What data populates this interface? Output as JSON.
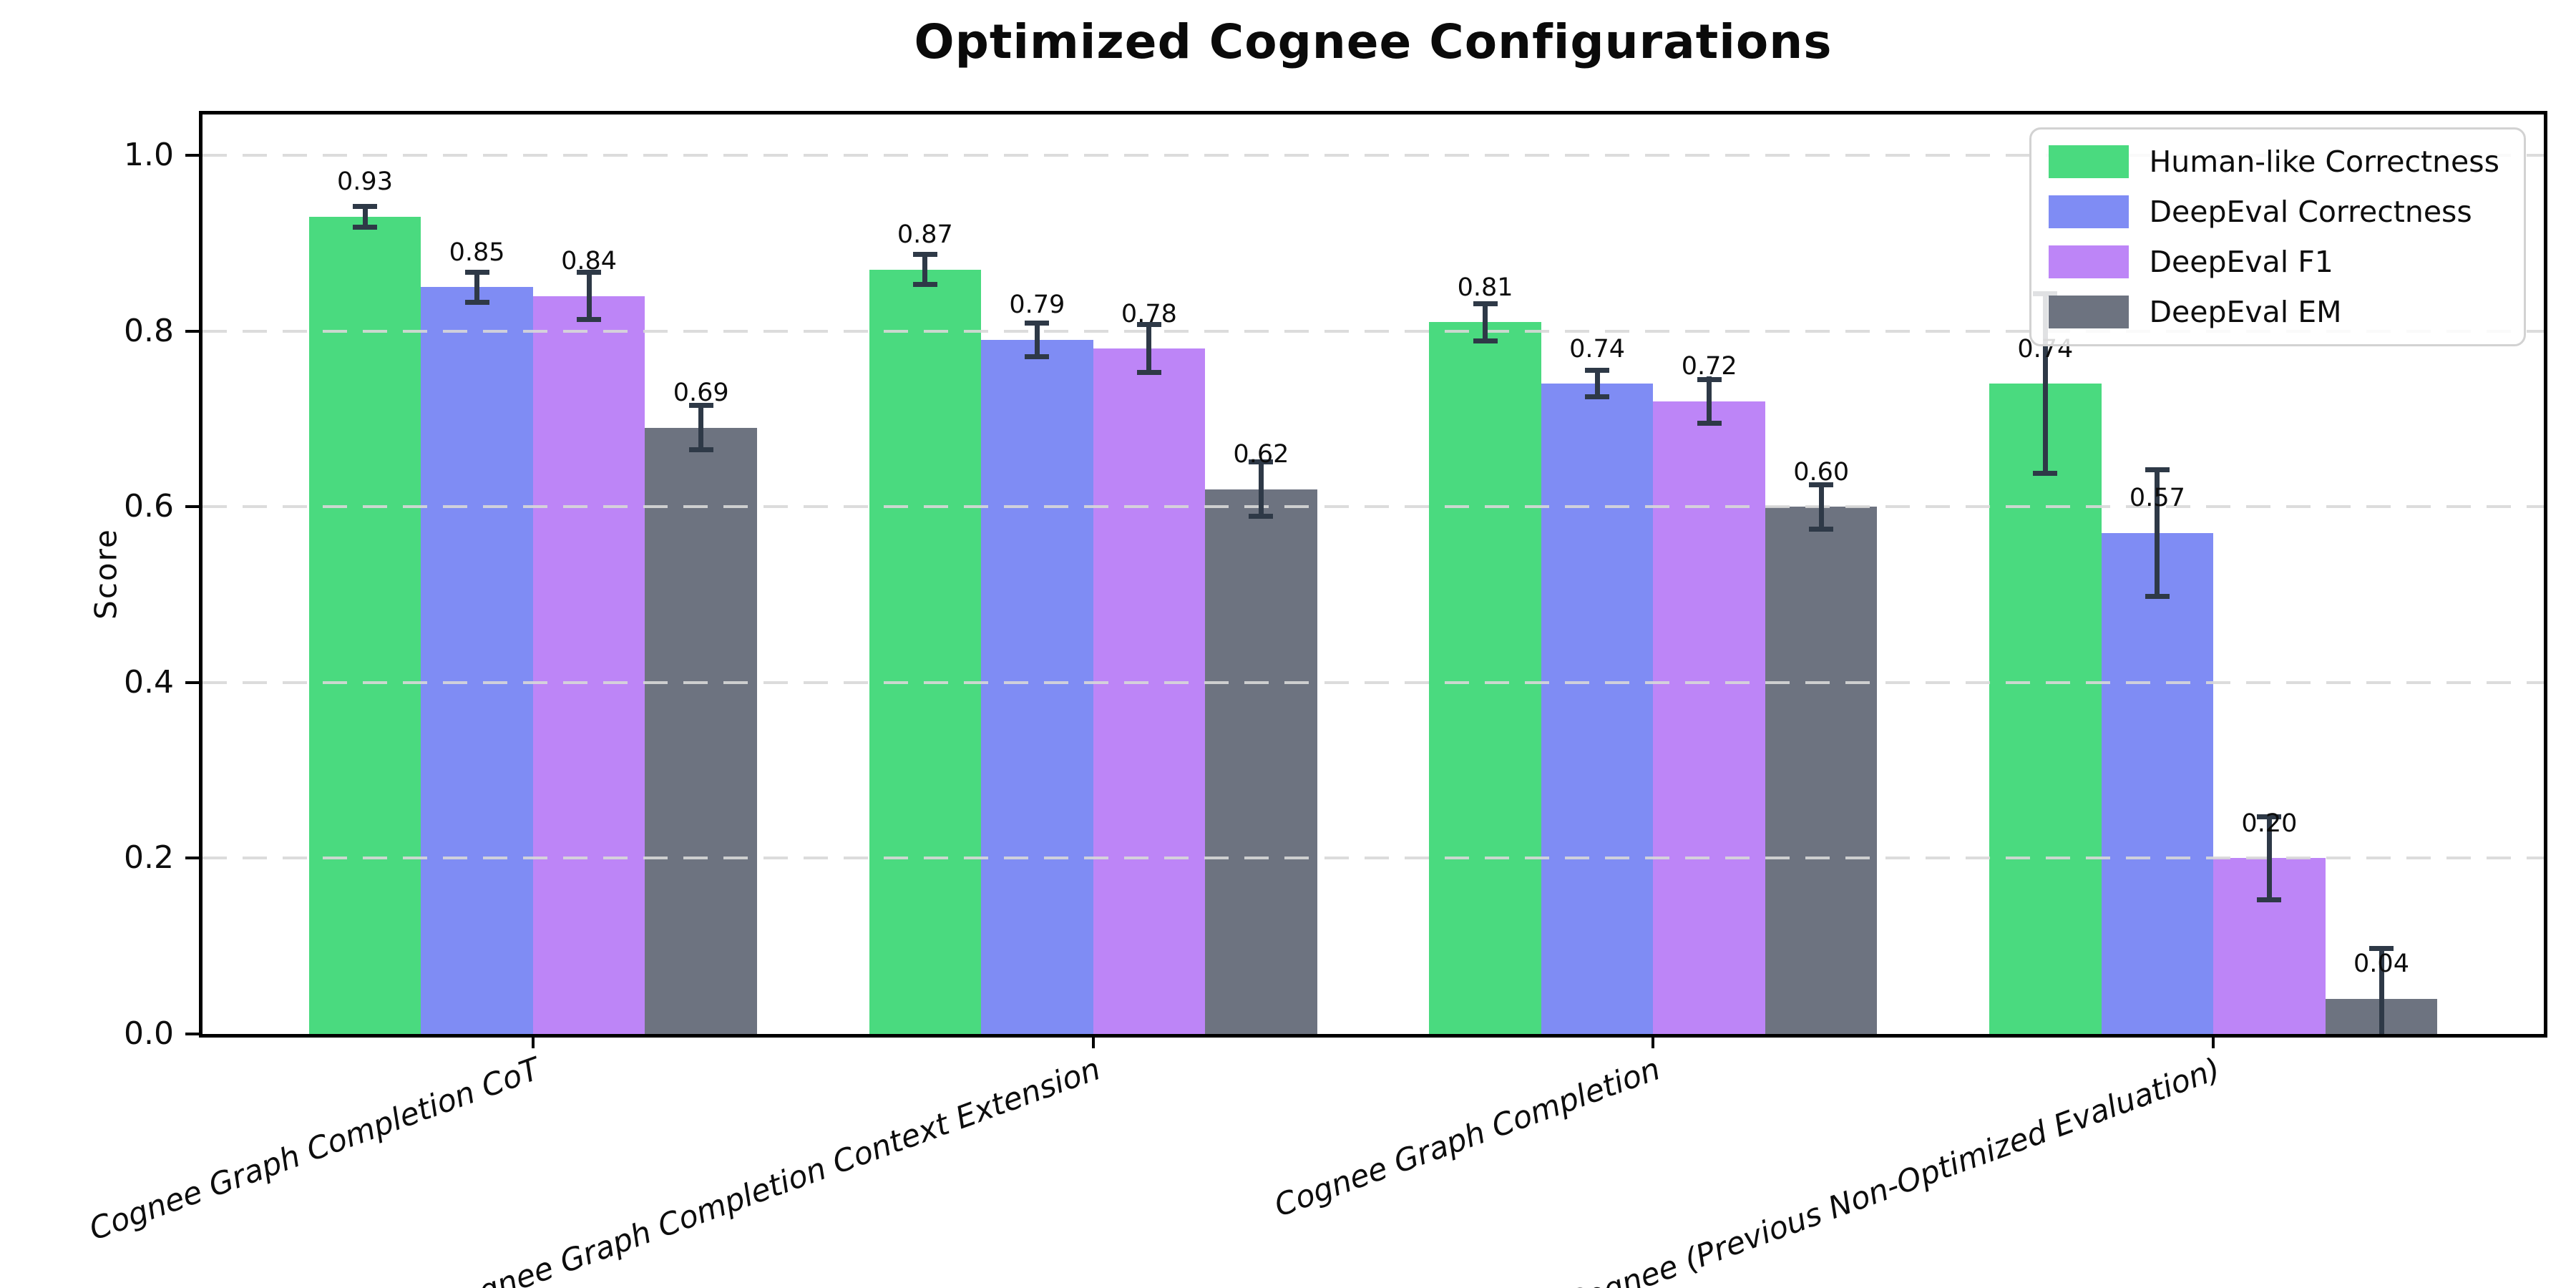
{
  "title": "Optimized Cognee Configurations",
  "chart_data": {
    "type": "bar",
    "title": "Optimized Cognee Configurations",
    "xlabel": "",
    "ylabel": "Score",
    "ylim": [
      0,
      1.05
    ],
    "yticks": [
      0.0,
      0.2,
      0.4,
      0.6,
      0.8,
      1.0
    ],
    "ytick_labels": [
      "0.0",
      "0.2",
      "0.4",
      "0.6",
      "0.8",
      "1.0"
    ],
    "grid": "horizontal dashed gridlines drawn over bars",
    "legend_position": "upper right",
    "bar_label_format": "two decimals above each bar",
    "error_bars": true,
    "error_bar_color": "#2e3947",
    "categories": [
      "Cognee Graph Completion CoT",
      "Cognee Graph Completion Context Extension",
      "Cognee Graph Completion",
      "Cognee (Previous Non-Optimized Evaluation)"
    ],
    "series": [
      {
        "name": "Human-like Correctness",
        "color": "#4ada7f",
        "values": [
          0.93,
          0.87,
          0.81,
          0.74
        ],
        "errors": [
          0.015,
          0.02,
          0.024,
          0.105
        ]
      },
      {
        "name": "DeepEval Correctness",
        "color": "#7f8cf4",
        "values": [
          0.85,
          0.79,
          0.74,
          0.57
        ],
        "errors": [
          0.02,
          0.022,
          0.018,
          0.075
        ]
      },
      {
        "name": "DeepEval F1",
        "color": "#bd85f7",
        "values": [
          0.84,
          0.78,
          0.72,
          0.2
        ],
        "errors": [
          0.03,
          0.03,
          0.028,
          0.05
        ]
      },
      {
        "name": "DeepEval EM",
        "color": "#6d7380",
        "values": [
          0.69,
          0.62,
          0.6,
          0.04
        ],
        "errors": [
          0.028,
          0.034,
          0.028,
          0.06
        ]
      }
    ]
  },
  "colors": {
    "background": "#ffffff",
    "spine": "#000000",
    "gridline": "#d8d8d8",
    "text": "#0d0d0d"
  }
}
